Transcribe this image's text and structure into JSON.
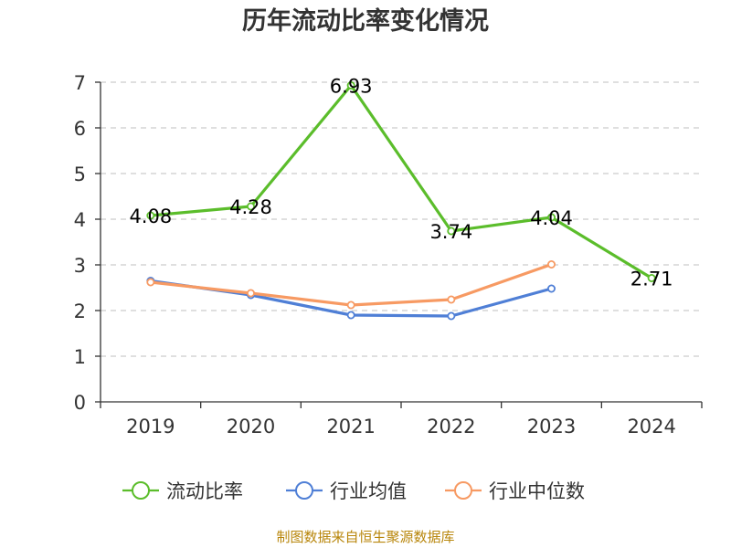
{
  "chart_data": {
    "type": "line",
    "title": "历年流动比率变化情况",
    "categories": [
      "2019",
      "2020",
      "2021",
      "2022",
      "2023",
      "2024"
    ],
    "ylim": [
      0,
      7
    ],
    "yticks": [
      "0",
      "1",
      "2",
      "3",
      "4",
      "5",
      "6",
      "7"
    ],
    "grid": true,
    "legend_position": "bottom",
    "series": [
      {
        "name": "流动比率",
        "color": "#5bbd2b",
        "values": [
          4.08,
          4.28,
          6.93,
          3.74,
          4.04,
          2.71
        ],
        "labels": [
          "4.08",
          "4.28",
          "6.93",
          "3.74",
          "4.04",
          "2.71"
        ],
        "show_labels": true
      },
      {
        "name": "行业均值",
        "color": "#4f7fd6",
        "values": [
          2.65,
          2.34,
          1.9,
          1.88,
          2.48,
          null
        ],
        "show_labels": false
      },
      {
        "name": "行业中位数",
        "color": "#f79a63",
        "values": [
          2.62,
          2.38,
          2.12,
          2.24,
          3.01,
          null
        ],
        "show_labels": false
      }
    ]
  },
  "footer": {
    "source_text": "制图数据来自恒生聚源数据库"
  }
}
